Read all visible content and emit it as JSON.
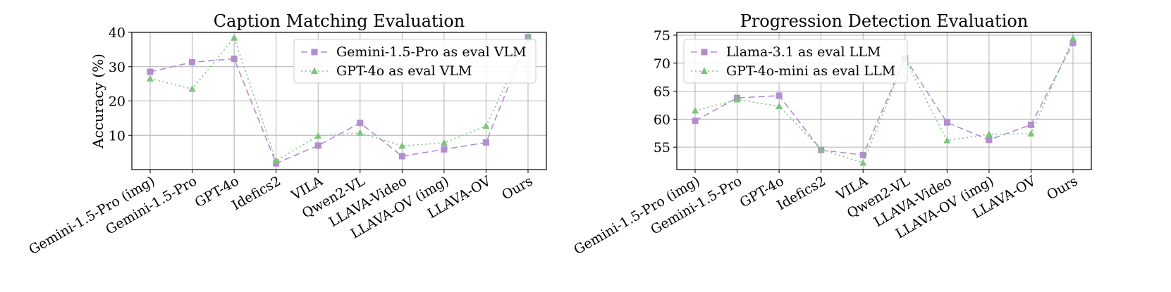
{
  "chart_data": [
    {
      "type": "line",
      "title": "Caption Matching Evaluation",
      "xlabel": "",
      "ylabel": "Accuracy (%)",
      "ylim": [
        0,
        40
      ],
      "yticks": [
        10,
        20,
        30,
        40
      ],
      "grid": true,
      "legend_position": "top-right",
      "categories": [
        "Gemini-1.5-Pro (img)",
        "Gemini-1.5-Pro",
        "GPT-4o",
        "Idefics2",
        "VILA",
        "Qwen2-VL",
        "LLAVA-Video",
        "LLAVA-OV (img)",
        "LLAVA-OV",
        "Ours"
      ],
      "series": [
        {
          "name": "Gemini-1.5-Pro as eval VLM",
          "marker": "square",
          "dash": "dashed",
          "color": "#b28dd0",
          "values": [
            28.5,
            31.3,
            32.3,
            1.8,
            7.0,
            13.6,
            3.9,
            5.9,
            7.9,
            38.6
          ]
        },
        {
          "name": "GPT-4o as eval VLM",
          "marker": "triangle",
          "dash": "dotted",
          "color": "#7dc47d",
          "values": [
            26.5,
            23.5,
            38.4,
            2.6,
            9.8,
            10.7,
            6.9,
            7.8,
            12.7,
            38.6
          ]
        }
      ]
    },
    {
      "type": "line",
      "title": "Progression Detection Evaluation",
      "xlabel": "",
      "ylabel": "",
      "ylim": [
        51,
        75.5
      ],
      "yticks": [
        55,
        60,
        65,
        70,
        75
      ],
      "grid": true,
      "legend_position": "top-left",
      "categories": [
        "Gemini-1.5-Pro (img)",
        "Gemini-1.5-Pro",
        "GPT-4o",
        "Idefics2",
        "VILA",
        "Qwen2-VL",
        "LLAVA-Video",
        "LLAVA-OV (img)",
        "LLAVA-OV",
        "Ours"
      ],
      "series": [
        {
          "name": "Llama-3.1 as eval LLM",
          "marker": "square",
          "dash": "dashed",
          "color": "#b28dd0",
          "values": [
            59.7,
            63.8,
            64.2,
            54.5,
            53.6,
            70.9,
            59.4,
            56.3,
            59.0,
            73.6
          ]
        },
        {
          "name": "GPT-4o-mini as eval LLM",
          "marker": "triangle",
          "dash": "dotted",
          "color": "#7dc47d",
          "values": [
            61.5,
            63.5,
            62.3,
            54.6,
            52.2,
            70.8,
            56.2,
            57.3,
            57.4,
            74.4
          ]
        }
      ]
    }
  ]
}
